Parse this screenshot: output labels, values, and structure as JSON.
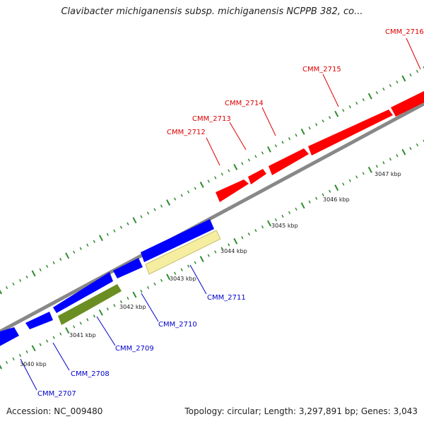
{
  "title": "Clavibacter michiganensis subsp. michiganensis NCPPB 382, co...",
  "footer": {
    "accession": "Accession: NC_009480",
    "summary": "Topology: circular; Length: 3,297,891 bp; Genes: 3,043"
  },
  "colors": {
    "forward_gene": "#ff0000",
    "reverse_gene": "#0000ff",
    "reverse_other_dark": "#6b8e23",
    "reverse_other_light": "#f5eea0",
    "backbone": "#888888",
    "tick": "#2e8b2e",
    "forward_label": "#dd0000",
    "reverse_label": "#0000cc"
  },
  "map": {
    "genes_forward": [
      {
        "label": "CMM_2712"
      },
      {
        "label": "CMM_2713"
      },
      {
        "label": "CMM_2714"
      },
      {
        "label": "CMM_2715"
      },
      {
        "label": "CMM_2716"
      }
    ],
    "genes_reverse": [
      {
        "label": "CMM_2707"
      },
      {
        "label": "CMM_2708"
      },
      {
        "label": "CMM_2709"
      },
      {
        "label": "CMM_2710"
      },
      {
        "label": "CMM_2711"
      }
    ],
    "tick_labels": [
      "3040 kbp",
      "3041 kbp",
      "3042 kbp",
      "3043 kbp",
      "3044 kbp",
      "3045 kbp",
      "3046 kbp",
      "3047 kbp"
    ]
  }
}
